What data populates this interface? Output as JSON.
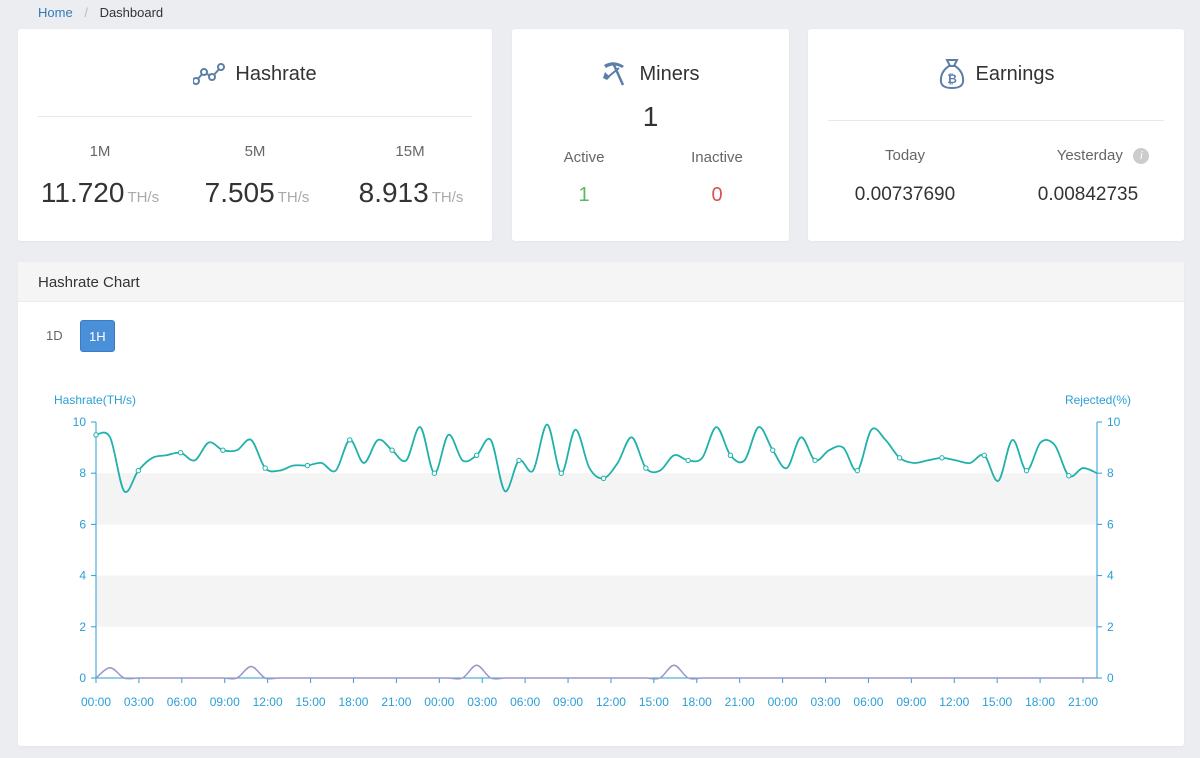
{
  "breadcrumb": {
    "home": "Home",
    "current": "Dashboard"
  },
  "hashrate_card": {
    "title": "Hashrate",
    "stats": [
      {
        "label": "1M",
        "value": "11.720",
        "unit": "TH/s"
      },
      {
        "label": "5M",
        "value": "7.505",
        "unit": "TH/s"
      },
      {
        "label": "15M",
        "value": "8.913",
        "unit": "TH/s"
      }
    ]
  },
  "miners_card": {
    "title": "Miners",
    "total": "1",
    "active_label": "Active",
    "active_value": "1",
    "inactive_label": "Inactive",
    "inactive_value": "0"
  },
  "earnings_card": {
    "title": "Earnings",
    "today_label": "Today",
    "today_value": "0.00737690",
    "yesterday_label": "Yesterday",
    "yesterday_value": "0.00842735"
  },
  "chart_panel": {
    "title": "Hashrate Chart",
    "ranges": [
      "1D",
      "1H"
    ],
    "selected_range": "1H"
  },
  "colors": {
    "accent": "#4a90d9",
    "hashrate_line": "#20b2aa",
    "rejected_line": "#9c95c9",
    "axis": "#2a9fd6",
    "active_green": "#5cb85c",
    "inactive_red": "#d9534f"
  },
  "chart_data": {
    "type": "line",
    "ylabel_left": "Hashrate(TH/s)",
    "ylabel_right": "Rejected(%)",
    "ylim": [
      0,
      10
    ],
    "y_ticks": [
      0,
      2,
      4,
      6,
      8,
      10
    ],
    "x_tick_labels": [
      "00:00",
      "03:00",
      "06:00",
      "09:00",
      "12:00",
      "15:00",
      "18:00",
      "21:00",
      "00:00",
      "03:00",
      "06:00",
      "09:00",
      "12:00",
      "15:00",
      "18:00",
      "21:00",
      "00:00",
      "03:00",
      "06:00",
      "09:00",
      "12:00",
      "15:00",
      "18:00",
      "21:00"
    ],
    "grid_bands": true,
    "series": [
      {
        "name": "Hashrate",
        "axis": "left",
        "x": [
          0,
          1,
          2,
          3,
          4,
          5,
          6,
          7,
          8,
          9,
          10,
          11,
          12,
          13,
          14,
          15,
          16,
          17,
          18,
          19,
          20,
          21,
          22,
          23,
          24,
          25,
          26,
          27,
          28,
          29,
          30,
          31,
          32,
          33,
          34,
          35,
          36,
          37,
          38,
          39,
          40,
          41,
          42,
          43,
          44,
          45,
          46,
          47,
          48,
          49,
          50,
          51,
          52,
          53,
          54,
          55,
          56,
          57,
          58,
          59,
          60,
          61,
          62,
          63,
          64,
          65,
          66,
          67,
          68,
          69,
          70,
          71
        ],
        "values": [
          9.5,
          9.4,
          7.3,
          8.1,
          8.6,
          8.7,
          8.8,
          8.5,
          9.2,
          8.9,
          8.9,
          9.3,
          8.2,
          8.1,
          8.3,
          8.3,
          8.4,
          8.1,
          9.3,
          8.4,
          9.3,
          8.9,
          8.5,
          9.8,
          8.0,
          9.5,
          8.5,
          8.7,
          9.3,
          7.3,
          8.5,
          8.1,
          9.9,
          8.0,
          9.7,
          8.2,
          7.8,
          8.4,
          9.4,
          8.2,
          8.1,
          8.7,
          8.5,
          8.6,
          9.8,
          8.7,
          8.5,
          9.8,
          8.9,
          8.2,
          9.4,
          8.5,
          8.9,
          9.0,
          8.1,
          9.7,
          9.3,
          8.6,
          8.4,
          8.5,
          8.6,
          8.5,
          8.4,
          8.7,
          7.7,
          9.3,
          8.1,
          9.2,
          9.1,
          7.9,
          8.2,
          8.0
        ]
      },
      {
        "name": "Rejected",
        "axis": "right",
        "x": [
          0,
          1,
          2,
          3,
          4,
          5,
          6,
          7,
          8,
          9,
          10,
          11,
          12,
          13,
          14,
          15,
          16,
          17,
          18,
          19,
          20,
          21,
          22,
          23,
          24,
          25,
          26,
          27,
          28,
          29,
          30,
          31,
          32,
          33,
          34,
          35,
          36,
          37,
          38,
          39,
          40,
          41,
          42,
          43,
          44,
          45,
          46,
          47,
          48,
          49,
          50,
          51,
          52,
          53,
          54,
          55,
          56,
          57,
          58,
          59,
          60,
          61,
          62,
          63,
          64,
          65,
          66,
          67,
          68,
          69,
          70,
          71
        ],
        "values": [
          0,
          0.4,
          0,
          0,
          0,
          0,
          0,
          0,
          0,
          0,
          0,
          0.45,
          0,
          0,
          0,
          0,
          0,
          0,
          0,
          0,
          0,
          0,
          0,
          0,
          0,
          0,
          0,
          0.5,
          0,
          0,
          0,
          0,
          0,
          0,
          0,
          0,
          0,
          0,
          0,
          0,
          0,
          0.5,
          0,
          0,
          0,
          0,
          0,
          0,
          0,
          0,
          0,
          0,
          0,
          0,
          0,
          0,
          0,
          0,
          0,
          0,
          0,
          0,
          0,
          0,
          0,
          0,
          0,
          0,
          0,
          0,
          0,
          0
        ]
      }
    ]
  }
}
